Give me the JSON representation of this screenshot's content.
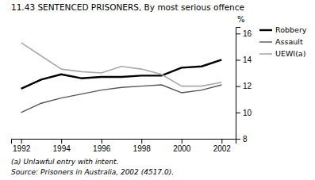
{
  "chart_data": {
    "type": "line",
    "title": "11.43   SENTENCED PRISONERS, By most serious offence",
    "ylabel": "%",
    "annotations": [
      "(a)  Unlawful entry with intent.",
      "Source:  Prisoners in Australia, 2002 (4517.0)."
    ],
    "x": [
      1992,
      1993,
      1994,
      1995,
      1996,
      1997,
      1998,
      1999,
      2000,
      2001,
      2002
    ],
    "series": [
      {
        "name": "Robbery",
        "color": "#000000",
        "values": [
          11.8,
          12.5,
          12.9,
          12.6,
          12.7,
          12.7,
          12.8,
          12.8,
          13.4,
          13.5,
          14.0
        ]
      },
      {
        "name": "Assault",
        "color": "#555555",
        "values": [
          10.0,
          10.7,
          11.1,
          11.4,
          11.7,
          11.9,
          12.0,
          12.1,
          11.5,
          11.7,
          12.1
        ]
      },
      {
        "name": "UEWI(a)",
        "color": "#aaaaaa",
        "values": [
          15.3,
          14.3,
          13.3,
          13.1,
          13.0,
          13.5,
          13.3,
          12.9,
          12.0,
          12.0,
          12.3
        ]
      }
    ],
    "xlim": [
      1991.5,
      2002.7
    ],
    "xticks": [
      1992,
      1994,
      1996,
      1998,
      2000,
      2002
    ],
    "ylim": [
      8,
      16.5
    ],
    "yticks": [
      8,
      10,
      12,
      14,
      16
    ],
    "grid": false,
    "legend": "right"
  }
}
